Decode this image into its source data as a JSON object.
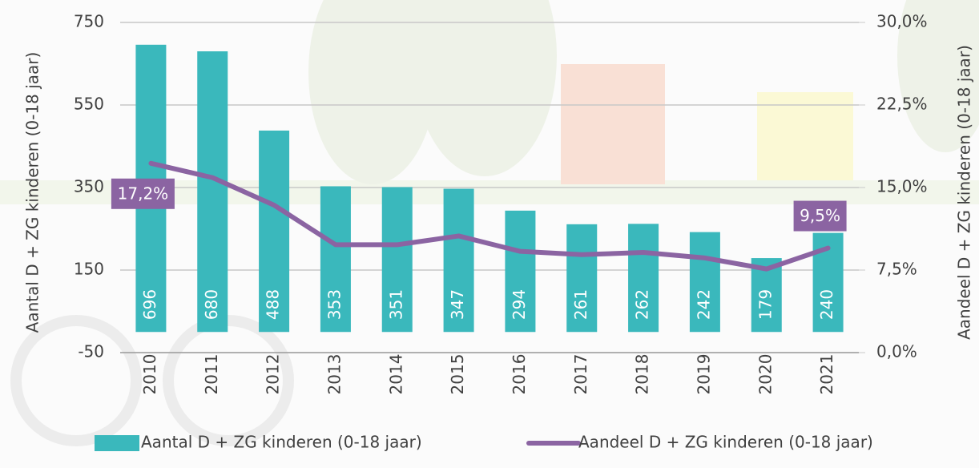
{
  "chart_data": {
    "type": "bar-line",
    "categories": [
      "2010",
      "2011",
      "2012",
      "2013",
      "2014",
      "2015",
      "2016",
      "2017",
      "2018",
      "2019",
      "2020",
      "2021"
    ],
    "series": [
      {
        "name": "Aantal D + ZG kinderen (0-18 jaar)",
        "type": "bar",
        "color": "#3ab8bc",
        "values": [
          696,
          680,
          488,
          353,
          351,
          347,
          294,
          261,
          262,
          242,
          179,
          240
        ]
      },
      {
        "name": "Aandeel D + ZG kinderen (0-18 jaar)",
        "type": "line",
        "axis": "y2",
        "color": "#8b64a2",
        "values": [
          17.2,
          15.9,
          13.4,
          9.8,
          9.8,
          10.6,
          9.2,
          8.9,
          9.1,
          8.6,
          7.6,
          9.5
        ],
        "value_labels": [
          "17,2%",
          null,
          null,
          null,
          null,
          null,
          null,
          null,
          null,
          null,
          null,
          "9,5%"
        ]
      }
    ],
    "ylabel": "Aantal D + ZG kinderen (0-18 jaar)",
    "y2label": "Aandeel D + ZG kinderen (0-18 jaar)",
    "ylim": [
      -50,
      750
    ],
    "yticks": [
      -50,
      150,
      350,
      550,
      750
    ],
    "y2lim": [
      0,
      30
    ],
    "y2ticks": [
      {
        "value": 0,
        "label": "0,0%"
      },
      {
        "value": 7.5,
        "label": "7,5%"
      },
      {
        "value": 15,
        "label": "15,0%"
      },
      {
        "value": 22.5,
        "label": "22,5%"
      },
      {
        "value": 30,
        "label": "30,0%"
      }
    ],
    "grid": true,
    "legend": "bottom"
  }
}
